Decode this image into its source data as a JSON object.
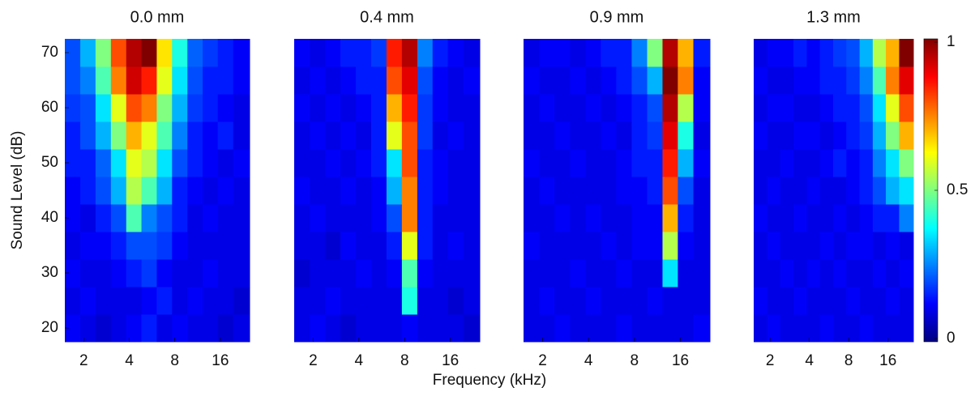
{
  "chart_data": [
    {
      "type": "heatmap",
      "title": "0.0 mm",
      "xlabel": "Frequency (kHz)",
      "ylabel": "Sound Level (dB)",
      "xscale": "log",
      "xlim": [
        1.5,
        25
      ],
      "xticks": [
        2,
        4,
        8,
        16
      ],
      "ylim": [
        17.5,
        72.5
      ],
      "yticks": [
        20,
        30,
        40,
        50,
        60,
        70
      ],
      "x": [
        1.69,
        2.13,
        2.69,
        3.4,
        4.29,
        5.41,
        6.83,
        8.62,
        10.9,
        13.7,
        17.3,
        21.9
      ],
      "y": [
        20,
        25,
        30,
        35,
        40,
        45,
        50,
        55,
        60,
        65,
        70
      ],
      "z": [
        [
          0.12,
          0.1,
          0.08,
          0.1,
          0.12,
          0.15,
          0.1,
          0.12,
          0.1,
          0.1,
          0.08,
          0.1
        ],
        [
          0.1,
          0.12,
          0.1,
          0.1,
          0.1,
          0.12,
          0.15,
          0.1,
          0.12,
          0.1,
          0.1,
          0.08
        ],
        [
          0.12,
          0.1,
          0.1,
          0.12,
          0.15,
          0.18,
          0.12,
          0.1,
          0.1,
          0.12,
          0.1,
          0.1
        ],
        [
          0.1,
          0.12,
          0.12,
          0.15,
          0.2,
          0.2,
          0.18,
          0.12,
          0.1,
          0.1,
          0.1,
          0.1
        ],
        [
          0.12,
          0.1,
          0.15,
          0.2,
          0.45,
          0.25,
          0.2,
          0.15,
          0.1,
          0.12,
          0.1,
          0.1
        ],
        [
          0.12,
          0.15,
          0.2,
          0.3,
          0.55,
          0.45,
          0.3,
          0.15,
          0.12,
          0.1,
          0.12,
          0.1
        ],
        [
          0.15,
          0.15,
          0.22,
          0.35,
          0.6,
          0.55,
          0.35,
          0.2,
          0.15,
          0.12,
          0.1,
          0.12
        ],
        [
          0.15,
          0.2,
          0.3,
          0.5,
          0.7,
          0.6,
          0.45,
          0.25,
          0.15,
          0.12,
          0.15,
          0.1
        ],
        [
          0.18,
          0.2,
          0.35,
          0.6,
          0.8,
          0.75,
          0.5,
          0.3,
          0.18,
          0.15,
          0.12,
          0.1
        ],
        [
          0.2,
          0.25,
          0.45,
          0.75,
          0.92,
          0.85,
          0.6,
          0.35,
          0.2,
          0.15,
          0.15,
          0.12
        ],
        [
          0.2,
          0.3,
          0.5,
          0.8,
          0.95,
          1,
          0.65,
          0.4,
          0.22,
          0.18,
          0.15,
          0.12
        ]
      ]
    },
    {
      "type": "heatmap",
      "title": "0.4 mm",
      "xscale": "log",
      "xlim": [
        1.5,
        25
      ],
      "xticks": [
        2,
        4,
        8,
        16
      ],
      "ylim": [
        17.5,
        72.5
      ],
      "x": [
        1.69,
        2.13,
        2.69,
        3.4,
        4.29,
        5.41,
        6.83,
        8.62,
        10.9,
        13.7,
        17.3,
        21.9
      ],
      "y": [
        20,
        25,
        30,
        35,
        40,
        45,
        50,
        55,
        60,
        65,
        70
      ],
      "z": [
        [
          0.1,
          0.12,
          0.1,
          0.08,
          0.1,
          0.1,
          0.1,
          0.12,
          0.1,
          0.1,
          0.1,
          0.08
        ],
        [
          0.1,
          0.1,
          0.12,
          0.1,
          0.1,
          0.1,
          0.1,
          0.4,
          0.1,
          0.1,
          0.08,
          0.1
        ],
        [
          0.08,
          0.1,
          0.1,
          0.1,
          0.12,
          0.1,
          0.12,
          0.45,
          0.12,
          0.1,
          0.1,
          0.1
        ],
        [
          0.1,
          0.1,
          0.08,
          0.12,
          0.1,
          0.1,
          0.15,
          0.6,
          0.15,
          0.1,
          0.12,
          0.1
        ],
        [
          0.1,
          0.12,
          0.1,
          0.1,
          0.1,
          0.12,
          0.2,
          0.75,
          0.15,
          0.1,
          0.1,
          0.1
        ],
        [
          0.12,
          0.1,
          0.1,
          0.12,
          0.1,
          0.12,
          0.3,
          0.75,
          0.15,
          0.12,
          0.1,
          0.1
        ],
        [
          0.1,
          0.1,
          0.12,
          0.1,
          0.12,
          0.15,
          0.35,
          0.8,
          0.15,
          0.12,
          0.1,
          0.1
        ],
        [
          0.1,
          0.12,
          0.1,
          0.12,
          0.1,
          0.15,
          0.6,
          0.8,
          0.18,
          0.1,
          0.12,
          0.1
        ],
        [
          0.12,
          0.1,
          0.12,
          0.1,
          0.12,
          0.15,
          0.7,
          0.85,
          0.18,
          0.12,
          0.1,
          0.1
        ],
        [
          0.1,
          0.12,
          0.1,
          0.12,
          0.15,
          0.15,
          0.8,
          0.9,
          0.2,
          0.12,
          0.1,
          0.12
        ],
        [
          0.12,
          0.1,
          0.12,
          0.15,
          0.15,
          0.18,
          0.85,
          0.95,
          0.25,
          0.15,
          0.12,
          0.1
        ]
      ]
    },
    {
      "type": "heatmap",
      "title": "0.9 mm",
      "xscale": "log",
      "xlim": [
        1.5,
        25
      ],
      "xticks": [
        2,
        4,
        8,
        16
      ],
      "ylim": [
        17.5,
        72.5
      ],
      "x": [
        1.69,
        2.13,
        2.69,
        3.4,
        4.29,
        5.41,
        6.83,
        8.62,
        10.9,
        13.7,
        17.3,
        21.9
      ],
      "y": [
        20,
        25,
        30,
        35,
        40,
        45,
        50,
        55,
        60,
        65,
        70
      ],
      "z": [
        [
          0.1,
          0.1,
          0.12,
          0.1,
          0.1,
          0.1,
          0.12,
          0.1,
          0.1,
          0.1,
          0.1,
          0.12
        ],
        [
          0.1,
          0.12,
          0.1,
          0.1,
          0.12,
          0.1,
          0.1,
          0.1,
          0.12,
          0.1,
          0.1,
          0.1
        ],
        [
          0.1,
          0.1,
          0.1,
          0.12,
          0.1,
          0.1,
          0.12,
          0.1,
          0.1,
          0.35,
          0.1,
          0.1
        ],
        [
          0.12,
          0.1,
          0.1,
          0.1,
          0.1,
          0.12,
          0.1,
          0.12,
          0.12,
          0.55,
          0.12,
          0.1
        ],
        [
          0.1,
          0.1,
          0.12,
          0.1,
          0.12,
          0.1,
          0.1,
          0.12,
          0.12,
          0.7,
          0.15,
          0.1
        ],
        [
          0.1,
          0.12,
          0.1,
          0.1,
          0.1,
          0.1,
          0.12,
          0.12,
          0.15,
          0.8,
          0.2,
          0.1
        ],
        [
          0.12,
          0.1,
          0.1,
          0.12,
          0.1,
          0.1,
          0.12,
          0.15,
          0.15,
          0.85,
          0.3,
          0.12
        ],
        [
          0.1,
          0.1,
          0.12,
          0.1,
          0.1,
          0.12,
          0.1,
          0.15,
          0.18,
          0.9,
          0.4,
          0.1
        ],
        [
          0.1,
          0.12,
          0.1,
          0.1,
          0.12,
          0.1,
          0.12,
          0.15,
          0.2,
          0.95,
          0.55,
          0.12
        ],
        [
          0.12,
          0.1,
          0.1,
          0.12,
          0.1,
          0.12,
          0.15,
          0.2,
          0.3,
          1,
          0.75,
          0.12
        ],
        [
          0.1,
          0.12,
          0.12,
          0.1,
          0.12,
          0.15,
          0.15,
          0.25,
          0.5,
          0.95,
          0.7,
          0.15
        ]
      ]
    },
    {
      "type": "heatmap",
      "title": "1.3 mm",
      "xscale": "log",
      "xlim": [
        1.5,
        25
      ],
      "xticks": [
        2,
        4,
        8,
        16
      ],
      "ylim": [
        17.5,
        72.5
      ],
      "x": [
        1.69,
        2.13,
        2.69,
        3.4,
        4.29,
        5.41,
        6.83,
        8.62,
        10.9,
        13.7,
        17.3,
        21.9
      ],
      "y": [
        20,
        25,
        30,
        35,
        40,
        45,
        50,
        55,
        60,
        65,
        70
      ],
      "z": [
        [
          0.1,
          0.12,
          0.1,
          0.1,
          0.1,
          0.12,
          0.1,
          0.1,
          0.12,
          0.1,
          0.1,
          0.1
        ],
        [
          0.12,
          0.1,
          0.1,
          0.12,
          0.1,
          0.1,
          0.1,
          0.12,
          0.1,
          0.1,
          0.12,
          0.1
        ],
        [
          0.1,
          0.1,
          0.12,
          0.1,
          0.12,
          0.1,
          0.12,
          0.1,
          0.1,
          0.12,
          0.1,
          0.12
        ],
        [
          0.1,
          0.12,
          0.1,
          0.1,
          0.1,
          0.12,
          0.1,
          0.12,
          0.12,
          0.1,
          0.12,
          0.1
        ],
        [
          0.12,
          0.1,
          0.1,
          0.12,
          0.1,
          0.1,
          0.12,
          0.1,
          0.12,
          0.15,
          0.15,
          0.25
        ],
        [
          0.1,
          0.12,
          0.1,
          0.1,
          0.12,
          0.1,
          0.1,
          0.12,
          0.15,
          0.2,
          0.3,
          0.35
        ],
        [
          0.1,
          0.1,
          0.12,
          0.1,
          0.1,
          0.12,
          0.15,
          0.12,
          0.15,
          0.25,
          0.35,
          0.5
        ],
        [
          0.12,
          0.1,
          0.1,
          0.12,
          0.12,
          0.1,
          0.12,
          0.15,
          0.18,
          0.3,
          0.5,
          0.7
        ],
        [
          0.1,
          0.12,
          0.12,
          0.1,
          0.1,
          0.12,
          0.15,
          0.15,
          0.2,
          0.35,
          0.6,
          0.8
        ],
        [
          0.12,
          0.1,
          0.1,
          0.12,
          0.12,
          0.15,
          0.15,
          0.18,
          0.25,
          0.45,
          0.75,
          0.9
        ],
        [
          0.1,
          0.12,
          0.12,
          0.15,
          0.12,
          0.15,
          0.18,
          0.2,
          0.3,
          0.55,
          0.7,
          1
        ]
      ],
      "colorbar": {
        "lim": [
          0,
          1
        ],
        "ticks": [
          0,
          0.5,
          1
        ]
      }
    }
  ]
}
